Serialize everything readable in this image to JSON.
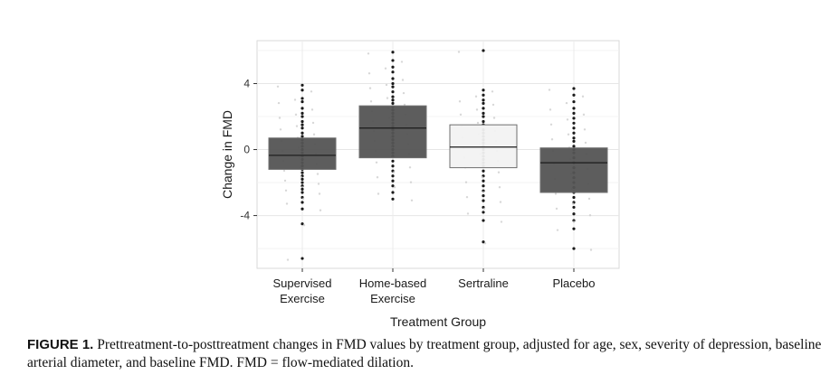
{
  "chart_data": {
    "type": "box",
    "xlabel": "Treatment Group",
    "ylabel": "Change in FMD",
    "ylim": [
      -7.2,
      6.6
    ],
    "yticks": [
      -4,
      0,
      4
    ],
    "grid": true,
    "categories": [
      {
        "line1": "Supervised",
        "line2": "Exercise"
      },
      {
        "line1": "Home-based",
        "line2": "Exercise"
      },
      {
        "line1": "Sertraline",
        "line2": ""
      },
      {
        "line1": "Placebo",
        "line2": ""
      }
    ],
    "boxes": [
      {
        "q1": -1.2,
        "median": -0.35,
        "q3": 0.7,
        "fill": "#545454"
      },
      {
        "q1": -0.5,
        "median": 1.3,
        "q3": 2.65,
        "fill": "#545454"
      },
      {
        "q1": -1.1,
        "median": 0.15,
        "q3": 1.5,
        "fill": "#f2f2f2"
      },
      {
        "q1": -2.6,
        "median": -0.8,
        "q3": 0.1,
        "fill": "#545454"
      }
    ],
    "points": [
      [
        3.9,
        3.6,
        3.1,
        2.9,
        2.5,
        2.2,
        2.0,
        1.7,
        1.5,
        1.3,
        1.0,
        0.8,
        0.6,
        0.4,
        0.2,
        0.0,
        -0.2,
        -0.4,
        -0.6,
        -0.8,
        -1.0,
        -1.2,
        -1.4,
        -1.6,
        -1.8,
        -2.0,
        -2.2,
        -2.4,
        -2.6,
        -2.9,
        -3.2,
        -3.6,
        -4.5,
        -6.6
      ],
      [
        5.9,
        5.4,
        5.0,
        4.7,
        4.3,
        4.0,
        3.8,
        3.5,
        3.2,
        3.0,
        2.8,
        2.6,
        2.4,
        2.2,
        2.0,
        1.8,
        1.6,
        1.4,
        1.2,
        1.0,
        0.8,
        0.6,
        0.4,
        0.2,
        0.0,
        -0.2,
        -0.4,
        -0.7,
        -1.0,
        -1.3,
        -1.6,
        -1.9,
        -2.2,
        -2.6,
        -3.0
      ],
      [
        6.0,
        3.6,
        3.3,
        3.0,
        2.8,
        2.5,
        2.2,
        2.0,
        1.7,
        1.5,
        1.2,
        1.0,
        0.8,
        0.6,
        0.4,
        0.2,
        0.0,
        -0.2,
        -0.4,
        -0.6,
        -0.8,
        -1.0,
        -1.3,
        -1.6,
        -1.9,
        -2.2,
        -2.5,
        -2.8,
        -3.1,
        -3.5,
        -3.8,
        -4.3,
        -5.6
      ],
      [
        3.7,
        3.3,
        2.9,
        2.5,
        2.2,
        1.9,
        1.6,
        1.3,
        1.0,
        0.7,
        0.5,
        0.2,
        0.0,
        -0.2,
        -0.5,
        -0.8,
        -1.1,
        -1.4,
        -1.7,
        -2.0,
        -2.3,
        -2.6,
        -2.9,
        -3.2,
        -3.5,
        -3.9,
        -4.3,
        -4.8,
        -6.0
      ]
    ]
  },
  "caption": {
    "label": "FIGURE 1.",
    "text": "Prettreatment-to-posttreatment changes in FMD values by treatment group, adjusted for age, sex, severity of depression, baseline arterial diameter, and baseline FMD. FMD = flow-mediated dilation."
  }
}
